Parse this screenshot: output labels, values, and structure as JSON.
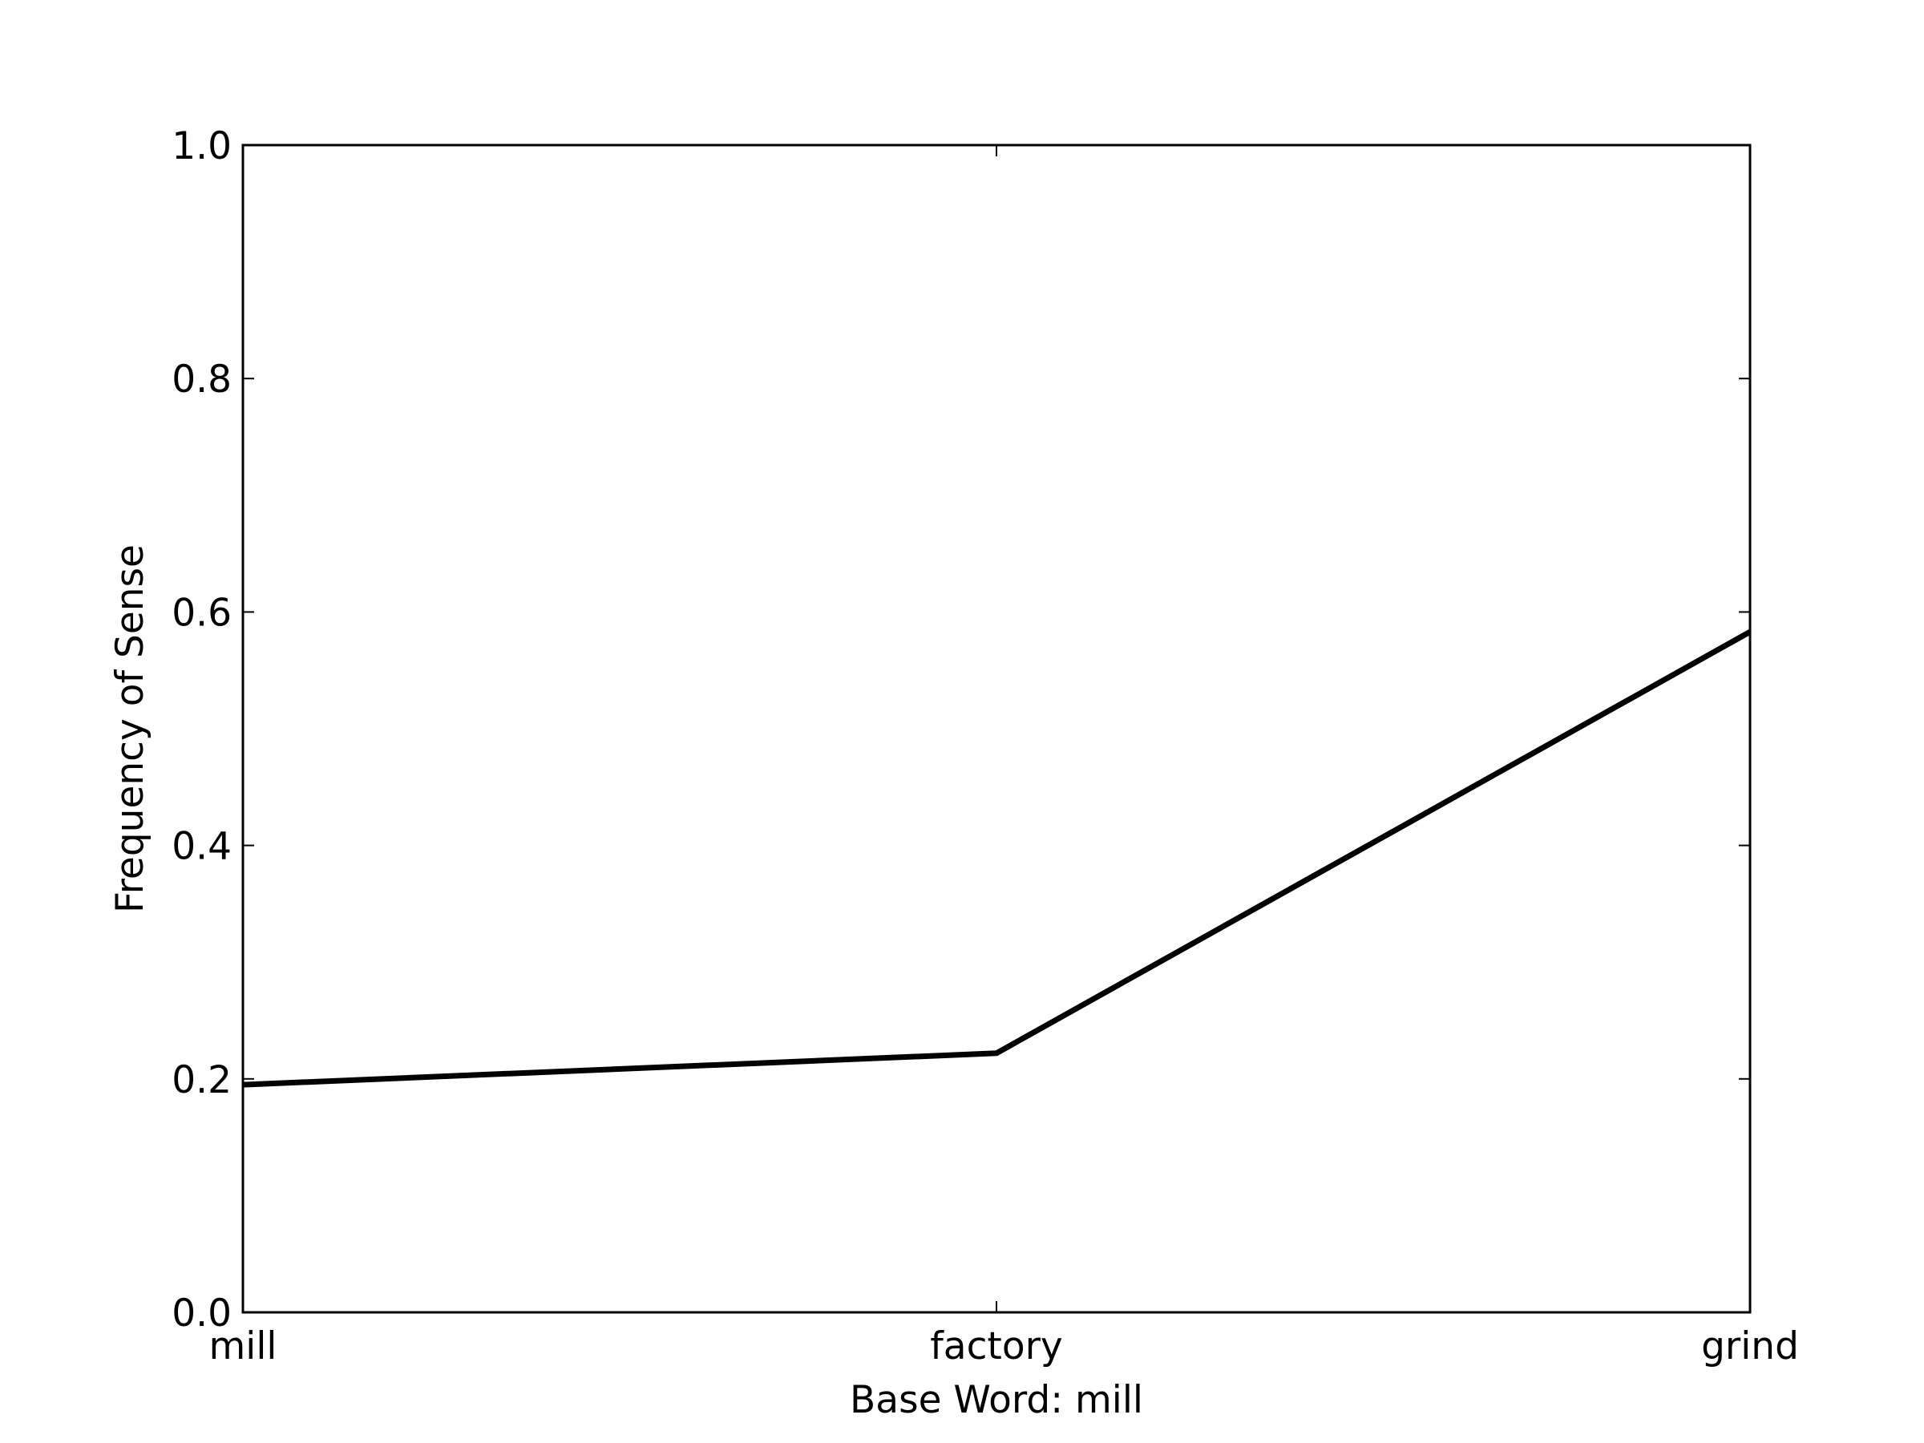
{
  "chart_data": {
    "type": "line",
    "categories": [
      "mill",
      "factory",
      "grind"
    ],
    "series": [
      {
        "values": [
          0.195,
          0.222,
          0.583
        ],
        "color": "#000000"
      }
    ],
    "xlabel": "Base Word: mill",
    "ylabel": "Frequency of Sense",
    "ylim": [
      0.0,
      1.0
    ],
    "yticks": [
      "0.0",
      "0.2",
      "0.4",
      "0.6",
      "0.8",
      "1.0"
    ],
    "grid": false
  }
}
